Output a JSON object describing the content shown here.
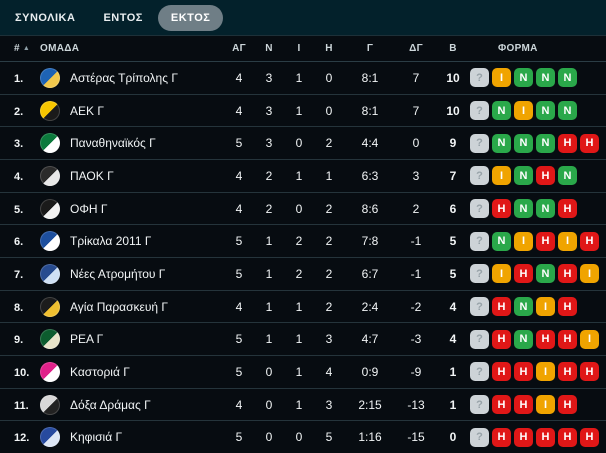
{
  "tabs": [
    {
      "label": "ΣΥΝΟΛΙΚΑ",
      "active": false
    },
    {
      "label": "ΕΝΤΟΣ",
      "active": false
    },
    {
      "label": "ΕΚΤΟΣ",
      "active": true
    }
  ],
  "colors": {
    "tab_bar_bg": "#03212b",
    "active_tab_pill": "#6f7e86",
    "table_bg": "#070c11",
    "divider": "#2b3d45",
    "form_win": "#2aa84a",
    "form_draw": "#f0a400",
    "form_loss": "#e01717",
    "form_unknown_bg": "#cdd3d7"
  },
  "table": {
    "headers": [
      "#",
      "ΟΜΑΔΑ",
      "ΑΓ",
      "Ν",
      "Ι",
      "Η",
      "Γ",
      "ΔΓ",
      "Β",
      "ΦΟΡΜΑ"
    ],
    "sort_indicator": "▲",
    "rows": [
      {
        "rank": "1.",
        "team": "Αστέρας Τρίπολης Γ",
        "icon": "asteras-tripolis-crest-icon",
        "icon_colors": [
          "#1e63b4",
          "#f2c94c"
        ],
        "played": "4",
        "wins": "3",
        "draws": "1",
        "losses": "0",
        "goals": "8:1",
        "goal_diff": "7",
        "points": "10",
        "form": [
          {
            "letter": "?",
            "result": "unknown"
          },
          {
            "letter": "Ι",
            "result": "draw"
          },
          {
            "letter": "Ν",
            "result": "win"
          },
          {
            "letter": "Ν",
            "result": "win"
          },
          {
            "letter": "Ν",
            "result": "win"
          }
        ]
      },
      {
        "rank": "2.",
        "team": "ΑΕΚ Γ",
        "icon": "aek-crest-icon",
        "icon_colors": [
          "#f7c600",
          "#1a1a1a"
        ],
        "played": "4",
        "wins": "3",
        "draws": "1",
        "losses": "0",
        "goals": "8:1",
        "goal_diff": "7",
        "points": "10",
        "form": [
          {
            "letter": "?",
            "result": "unknown"
          },
          {
            "letter": "Ν",
            "result": "win"
          },
          {
            "letter": "Ι",
            "result": "draw"
          },
          {
            "letter": "Ν",
            "result": "win"
          },
          {
            "letter": "Ν",
            "result": "win"
          }
        ]
      },
      {
        "rank": "3.",
        "team": "Παναθηναϊκός Γ",
        "icon": "panathinaikos-crest-icon",
        "icon_colors": [
          "#0b7a3c",
          "#ffffff"
        ],
        "played": "5",
        "wins": "3",
        "draws": "0",
        "losses": "2",
        "goals": "4:4",
        "goal_diff": "0",
        "points": "9",
        "form": [
          {
            "letter": "?",
            "result": "unknown"
          },
          {
            "letter": "Ν",
            "result": "win"
          },
          {
            "letter": "Ν",
            "result": "win"
          },
          {
            "letter": "Ν",
            "result": "win"
          },
          {
            "letter": "Η",
            "result": "loss"
          },
          {
            "letter": "Η",
            "result": "loss"
          }
        ]
      },
      {
        "rank": "4.",
        "team": "ΠΑΟΚ Γ",
        "icon": "paok-crest-icon",
        "icon_colors": [
          "#2b2b2b",
          "#e8e8e8"
        ],
        "played": "4",
        "wins": "2",
        "draws": "1",
        "losses": "1",
        "goals": "6:3",
        "goal_diff": "3",
        "points": "7",
        "form": [
          {
            "letter": "?",
            "result": "unknown"
          },
          {
            "letter": "Ι",
            "result": "draw"
          },
          {
            "letter": "Ν",
            "result": "win"
          },
          {
            "letter": "Η",
            "result": "loss"
          },
          {
            "letter": "Ν",
            "result": "win"
          }
        ]
      },
      {
        "rank": "5.",
        "team": "ΟΦΗ Γ",
        "icon": "ofi-crest-icon",
        "icon_colors": [
          "#1a1a1a",
          "#f2f2f2"
        ],
        "played": "4",
        "wins": "2",
        "draws": "0",
        "losses": "2",
        "goals": "8:6",
        "goal_diff": "2",
        "points": "6",
        "form": [
          {
            "letter": "?",
            "result": "unknown"
          },
          {
            "letter": "Η",
            "result": "loss"
          },
          {
            "letter": "Ν",
            "result": "win"
          },
          {
            "letter": "Ν",
            "result": "win"
          },
          {
            "letter": "Η",
            "result": "loss"
          }
        ]
      },
      {
        "rank": "6.",
        "team": "Τρίκαλα 2011 Γ",
        "icon": "trikala-crest-icon",
        "icon_colors": [
          "#1d4f9e",
          "#ffffff"
        ],
        "played": "5",
        "wins": "1",
        "draws": "2",
        "losses": "2",
        "goals": "7:8",
        "goal_diff": "-1",
        "points": "5",
        "form": [
          {
            "letter": "?",
            "result": "unknown"
          },
          {
            "letter": "Ν",
            "result": "win"
          },
          {
            "letter": "Ι",
            "result": "draw"
          },
          {
            "letter": "Η",
            "result": "loss"
          },
          {
            "letter": "Ι",
            "result": "draw"
          },
          {
            "letter": "Η",
            "result": "loss"
          }
        ]
      },
      {
        "rank": "7.",
        "team": "Νέες Ατρομήτου Γ",
        "icon": "nees-atromitou-crest-icon",
        "icon_colors": [
          "#274b8f",
          "#cfe0f4"
        ],
        "played": "5",
        "wins": "1",
        "draws": "2",
        "losses": "2",
        "goals": "6:7",
        "goal_diff": "-1",
        "points": "5",
        "form": [
          {
            "letter": "?",
            "result": "unknown"
          },
          {
            "letter": "Ι",
            "result": "draw"
          },
          {
            "letter": "Η",
            "result": "loss"
          },
          {
            "letter": "Ν",
            "result": "win"
          },
          {
            "letter": "Η",
            "result": "loss"
          },
          {
            "letter": "Ι",
            "result": "draw"
          }
        ]
      },
      {
        "rank": "8.",
        "team": "Αγία Παρασκευή Γ",
        "icon": "agia-paraskevi-crest-icon",
        "icon_colors": [
          "#1c1c1c",
          "#f0c030"
        ],
        "played": "4",
        "wins": "1",
        "draws": "1",
        "losses": "2",
        "goals": "2:4",
        "goal_diff": "-2",
        "points": "4",
        "form": [
          {
            "letter": "?",
            "result": "unknown"
          },
          {
            "letter": "Η",
            "result": "loss"
          },
          {
            "letter": "Ν",
            "result": "win"
          },
          {
            "letter": "Ι",
            "result": "draw"
          },
          {
            "letter": "Η",
            "result": "loss"
          }
        ]
      },
      {
        "rank": "9.",
        "team": "ΡΕΑ Γ",
        "icon": "rea-crest-icon",
        "icon_colors": [
          "#0c5c2e",
          "#e8e4c9"
        ],
        "played": "5",
        "wins": "1",
        "draws": "1",
        "losses": "3",
        "goals": "4:7",
        "goal_diff": "-3",
        "points": "4",
        "form": [
          {
            "letter": "?",
            "result": "unknown"
          },
          {
            "letter": "Η",
            "result": "loss"
          },
          {
            "letter": "Ν",
            "result": "win"
          },
          {
            "letter": "Η",
            "result": "loss"
          },
          {
            "letter": "Η",
            "result": "loss"
          },
          {
            "letter": "Ι",
            "result": "draw"
          }
        ]
      },
      {
        "rank": "10.",
        "team": "Καστοριά Γ",
        "icon": "kastoria-crest-icon",
        "icon_colors": [
          "#e0218a",
          "#ffffff"
        ],
        "played": "5",
        "wins": "0",
        "draws": "1",
        "losses": "4",
        "goals": "0:9",
        "goal_diff": "-9",
        "points": "1",
        "form": [
          {
            "letter": "?",
            "result": "unknown"
          },
          {
            "letter": "Η",
            "result": "loss"
          },
          {
            "letter": "Η",
            "result": "loss"
          },
          {
            "letter": "Ι",
            "result": "draw"
          },
          {
            "letter": "Η",
            "result": "loss"
          },
          {
            "letter": "Η",
            "result": "loss"
          }
        ]
      },
      {
        "rank": "11.",
        "team": "Δόξα Δράμας Γ",
        "icon": "doxa-dramas-crest-icon",
        "icon_colors": [
          "#d8d8d8",
          "#222222"
        ],
        "played": "4",
        "wins": "0",
        "draws": "1",
        "losses": "3",
        "goals": "2:15",
        "goal_diff": "-13",
        "points": "1",
        "form": [
          {
            "letter": "?",
            "result": "unknown"
          },
          {
            "letter": "Η",
            "result": "loss"
          },
          {
            "letter": "Η",
            "result": "loss"
          },
          {
            "letter": "Ι",
            "result": "draw"
          },
          {
            "letter": "Η",
            "result": "loss"
          }
        ]
      },
      {
        "rank": "12.",
        "team": "Κηφισιά Γ",
        "icon": "kifisia-crest-icon",
        "icon_colors": [
          "#274a9e",
          "#dce6f5"
        ],
        "played": "5",
        "wins": "0",
        "draws": "0",
        "losses": "5",
        "goals": "1:16",
        "goal_diff": "-15",
        "points": "0",
        "form": [
          {
            "letter": "?",
            "result": "unknown"
          },
          {
            "letter": "Η",
            "result": "loss"
          },
          {
            "letter": "Η",
            "result": "loss"
          },
          {
            "letter": "Η",
            "result": "loss"
          },
          {
            "letter": "Η",
            "result": "loss"
          },
          {
            "letter": "Η",
            "result": "loss"
          }
        ]
      }
    ]
  }
}
